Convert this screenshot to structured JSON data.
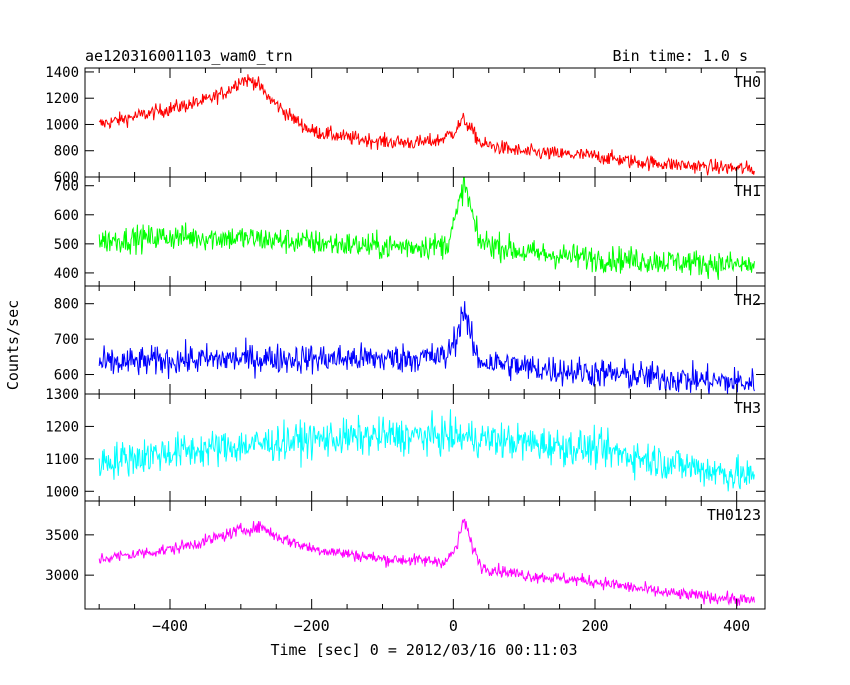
{
  "header": {
    "title": "ae120316001103_wam0_trn",
    "bin_time": "Bin time: 1.0 s"
  },
  "axes": {
    "xlabel": "Time [sec] 0 = 2012/03/16 00:11:03",
    "ylabel": "Counts/sec"
  },
  "chart_data": {
    "type": "line",
    "xlim": [
      -520,
      440
    ],
    "x_ticks": [
      -400,
      -200,
      0,
      200,
      400
    ],
    "x_tick_labels": [
      "−400",
      "−200",
      "0",
      "200",
      "400"
    ],
    "x_range": [
      -500,
      425
    ],
    "grid": false,
    "series": [
      {
        "name": "TH0",
        "color": "#ff0000",
        "ylim": [
          600,
          1430
        ],
        "y_ticks": [
          600,
          800,
          1000,
          1200,
          1400
        ],
        "y_tick_labels": [
          "600",
          "800",
          "1000",
          "1200",
          "1400"
        ],
        "noise": 40,
        "trend": [
          [
            -500,
            1000
          ],
          [
            -450,
            1060
          ],
          [
            -400,
            1120
          ],
          [
            -350,
            1180
          ],
          [
            -320,
            1250
          ],
          [
            -300,
            1340
          ],
          [
            -280,
            1330
          ],
          [
            -260,
            1200
          ],
          [
            -230,
            1060
          ],
          [
            -200,
            950
          ],
          [
            -150,
            900
          ],
          [
            -100,
            870
          ],
          [
            -50,
            860
          ],
          [
            -20,
            880
          ],
          [
            0,
            940
          ],
          [
            15,
            1040
          ],
          [
            25,
            960
          ],
          [
            40,
            850
          ],
          [
            100,
            790
          ],
          [
            200,
            760
          ],
          [
            250,
            720
          ],
          [
            300,
            700
          ],
          [
            350,
            680
          ],
          [
            425,
            660
          ]
        ]
      },
      {
        "name": "TH1",
        "color": "#00ff00",
        "ylim": [
          355,
          730
        ],
        "y_ticks": [
          400,
          500,
          600,
          700
        ],
        "y_tick_labels": [
          "400",
          "500",
          "600",
          "700"
        ],
        "noise": 32,
        "trend": [
          [
            -500,
            510
          ],
          [
            -400,
            525
          ],
          [
            -300,
            520
          ],
          [
            -200,
            505
          ],
          [
            -100,
            490
          ],
          [
            -10,
            495
          ],
          [
            5,
            600
          ],
          [
            15,
            710
          ],
          [
            25,
            620
          ],
          [
            35,
            510
          ],
          [
            100,
            470
          ],
          [
            200,
            450
          ],
          [
            300,
            440
          ],
          [
            425,
            425
          ]
        ]
      },
      {
        "name": "TH2",
        "color": "#0000ff",
        "ylim": [
          545,
          850
        ],
        "y_ticks": [
          600,
          700,
          800
        ],
        "y_tick_labels": [
          "600",
          "700",
          "800"
        ],
        "noise": 30,
        "trend": [
          [
            -500,
            630
          ],
          [
            -400,
            640
          ],
          [
            -300,
            645
          ],
          [
            -200,
            645
          ],
          [
            -100,
            645
          ],
          [
            -10,
            650
          ],
          [
            5,
            710
          ],
          [
            15,
            790
          ],
          [
            25,
            700
          ],
          [
            35,
            640
          ],
          [
            100,
            620
          ],
          [
            200,
            605
          ],
          [
            300,
            590
          ],
          [
            425,
            575
          ]
        ]
      },
      {
        "name": "TH3",
        "color": "#00ffff",
        "ylim": [
          970,
          1300
        ],
        "y_ticks": [
          1000,
          1100,
          1200,
          1300
        ],
        "y_tick_labels": [
          "1000",
          "1100",
          "1200",
          "1300"
        ],
        "noise": 40,
        "trend": [
          [
            -500,
            1090
          ],
          [
            -400,
            1120
          ],
          [
            -300,
            1140
          ],
          [
            -200,
            1160
          ],
          [
            -100,
            1170
          ],
          [
            0,
            1170
          ],
          [
            100,
            1150
          ],
          [
            200,
            1130
          ],
          [
            300,
            1090
          ],
          [
            425,
            1040
          ]
        ]
      },
      {
        "name": "TH0123",
        "color": "#ff00ff",
        "ylim": [
          2580,
          3920
        ],
        "y_ticks": [
          3000,
          3500
        ],
        "y_tick_labels": [
          "3000",
          "3500"
        ],
        "noise": 55,
        "trend": [
          [
            -500,
            3200
          ],
          [
            -400,
            3320
          ],
          [
            -350,
            3420
          ],
          [
            -300,
            3560
          ],
          [
            -270,
            3600
          ],
          [
            -250,
            3480
          ],
          [
            -200,
            3330
          ],
          [
            -100,
            3200
          ],
          [
            -10,
            3170
          ],
          [
            5,
            3350
          ],
          [
            15,
            3700
          ],
          [
            25,
            3400
          ],
          [
            40,
            3100
          ],
          [
            100,
            3000
          ],
          [
            200,
            2920
          ],
          [
            300,
            2780
          ],
          [
            425,
            2680
          ]
        ]
      }
    ]
  }
}
